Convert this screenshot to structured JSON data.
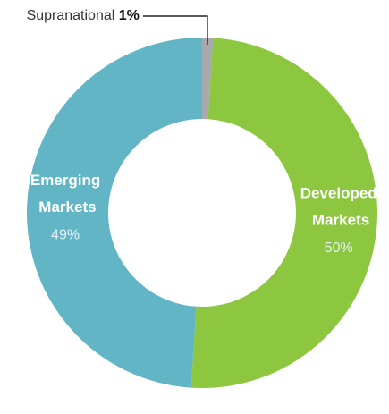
{
  "chart_data": {
    "type": "donut",
    "categories": [
      "Supranational",
      "Developed Markets",
      "Emerging Markets"
    ],
    "values": [
      1,
      50,
      49
    ],
    "value_labels": [
      "1%",
      "50%",
      "49%"
    ],
    "colors": [
      "#a7a9ac",
      "#8dc63f",
      "#62b5c5"
    ]
  }
}
